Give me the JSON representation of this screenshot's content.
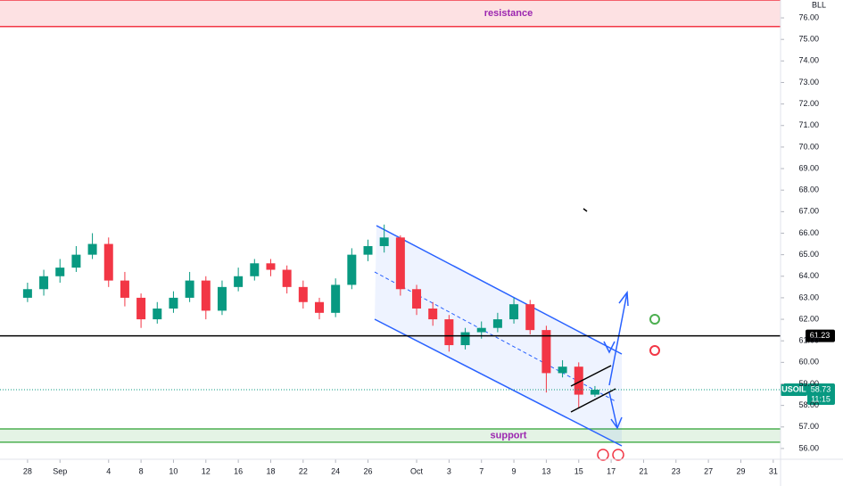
{
  "chart_data": {
    "type": "candlestick",
    "scale_label": "BLL",
    "symbol": "USOIL",
    "last_price": 58.73,
    "countdown": "11:15",
    "horizontal_line": 61.23,
    "zones": [
      {
        "label": "resistance",
        "low": 75.6,
        "high": 76.83,
        "color": "#f23645"
      },
      {
        "label": "support",
        "low": 56.29,
        "high": 56.91,
        "color": "#4caf50"
      }
    ],
    "up_color": "#089981",
    "down_color": "#f23645",
    "x": [
      0,
      1,
      2,
      3,
      4,
      5,
      6,
      7,
      8,
      9,
      10,
      11,
      12,
      13,
      14,
      15,
      16,
      17,
      18,
      19,
      20,
      21,
      22,
      23,
      24,
      25,
      26,
      27,
      28,
      29,
      30,
      31,
      32,
      33,
      34,
      35
    ],
    "open": [
      63.0,
      63.4,
      64.0,
      64.4,
      65.0,
      65.5,
      63.8,
      63.0,
      62.0,
      62.5,
      63.0,
      63.8,
      62.4,
      63.5,
      64.0,
      64.6,
      64.3,
      63.5,
      62.8,
      62.3,
      63.6,
      65.0,
      65.4,
      65.8,
      63.4,
      62.5,
      62.0,
      60.8,
      61.4,
      61.6,
      62.0,
      62.7,
      61.5,
      59.5,
      59.8,
      58.5
    ],
    "high": [
      63.7,
      64.3,
      64.8,
      65.4,
      66.0,
      65.8,
      64.2,
      63.2,
      62.8,
      63.3,
      64.2,
      64.0,
      63.8,
      64.4,
      64.8,
      64.8,
      64.5,
      63.8,
      63.0,
      63.9,
      65.3,
      65.7,
      66.4,
      65.9,
      63.6,
      62.8,
      62.2,
      61.6,
      61.9,
      62.3,
      63.0,
      62.9,
      61.7,
      60.1,
      60.0,
      58.9
    ],
    "low": [
      62.8,
      63.1,
      63.7,
      64.2,
      64.8,
      63.5,
      62.6,
      61.6,
      61.8,
      62.3,
      62.8,
      62.0,
      62.2,
      63.3,
      63.8,
      64.0,
      63.2,
      62.5,
      62.0,
      62.1,
      63.4,
      64.7,
      65.1,
      63.1,
      62.2,
      61.7,
      60.5,
      60.6,
      61.1,
      61.4,
      61.8,
      61.3,
      58.6,
      59.3,
      57.9,
      58.4
    ],
    "close": [
      63.4,
      64.0,
      64.4,
      65.0,
      65.5,
      63.8,
      63.0,
      62.0,
      62.5,
      63.0,
      63.8,
      62.4,
      63.5,
      64.0,
      64.6,
      64.3,
      63.5,
      62.8,
      62.3,
      63.6,
      65.0,
      65.4,
      65.8,
      63.4,
      62.5,
      62.0,
      60.8,
      61.4,
      61.6,
      62.0,
      62.7,
      61.5,
      59.5,
      59.8,
      58.5,
      58.73
    ],
    "xlim": [
      -1.7,
      46.45
    ],
    "xticks": [
      {
        "value": 0,
        "label": "28"
      },
      {
        "value": 2,
        "label": "Sep"
      },
      {
        "value": 5,
        "label": "4"
      },
      {
        "value": 7,
        "label": "8"
      },
      {
        "value": 9,
        "label": "10"
      },
      {
        "value": 11,
        "label": "12"
      },
      {
        "value": 13,
        "label": "16"
      },
      {
        "value": 15,
        "label": "18"
      },
      {
        "value": 17,
        "label": "22"
      },
      {
        "value": 19,
        "label": "24"
      },
      {
        "value": 21,
        "label": "26"
      },
      {
        "value": 24,
        "label": "Oct"
      },
      {
        "value": 26,
        "label": "3"
      },
      {
        "value": 28,
        "label": "7"
      },
      {
        "value": 30,
        "label": "9"
      },
      {
        "value": 32,
        "label": "13"
      },
      {
        "value": 34,
        "label": "15"
      },
      {
        "value": 36,
        "label": "17"
      },
      {
        "value": 38,
        "label": "21"
      },
      {
        "value": 40,
        "label": "23"
      },
      {
        "value": 42,
        "label": "27"
      },
      {
        "value": 44,
        "label": "29"
      },
      {
        "value": 46,
        "label": "31"
      }
    ],
    "ylim": [
      55.5,
      76.83
    ],
    "yticks": [
      {
        "value": 56,
        "label": "56.00"
      },
      {
        "value": 57,
        "label": "57.00"
      },
      {
        "value": 58,
        "label": "58.00"
      },
      {
        "value": 59,
        "label": "59.00"
      },
      {
        "value": 60,
        "label": "60.00"
      },
      {
        "value": 61,
        "label": "61.00"
      },
      {
        "value": 62,
        "label": "62.00"
      },
      {
        "value": 63,
        "label": "63.00"
      },
      {
        "value": 64,
        "label": "64.00"
      },
      {
        "value": 65,
        "label": "65.00"
      },
      {
        "value": 66,
        "label": "66.00"
      },
      {
        "value": 67,
        "label": "67.00"
      },
      {
        "value": 68,
        "label": "68.00"
      },
      {
        "value": 69,
        "label": "69.00"
      },
      {
        "value": 70,
        "label": "70.00"
      },
      {
        "value": 71,
        "label": "71.00"
      },
      {
        "value": 72,
        "label": "72.00"
      },
      {
        "value": 73,
        "label": "73.00"
      },
      {
        "value": 74,
        "label": "74.00"
      },
      {
        "value": 75,
        "label": "75.00"
      },
      {
        "value": 76,
        "label": "76.00"
      }
    ]
  }
}
